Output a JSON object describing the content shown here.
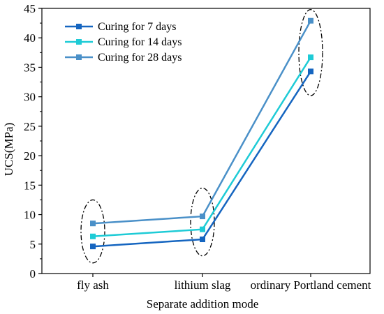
{
  "chart_data": {
    "type": "line",
    "title": "",
    "xlabel": "Separate addition mode",
    "ylabel": "UCS(MPa)",
    "categories": [
      "fly ash",
      "lithium slag",
      "ordinary Portland cement"
    ],
    "ylim": [
      0,
      45
    ],
    "yticks": [
      0,
      5,
      10,
      15,
      20,
      25,
      30,
      35,
      40,
      45
    ],
    "grid": false,
    "legend_position": "top-left",
    "series": [
      {
        "name": "Curing for 7 days",
        "color": "#1565c0",
        "values": [
          4.6,
          5.8,
          34.3
        ]
      },
      {
        "name": "Curing for 14 days",
        "color": "#1ecbd6",
        "values": [
          6.3,
          7.5,
          36.7
        ]
      },
      {
        "name": "Curing for 28 days",
        "color": "#4a90c8",
        "values": [
          8.5,
          9.7,
          42.9
        ]
      }
    ],
    "annotations": [
      {
        "shape": "dashed-ellipse",
        "category": "fly ash",
        "y_range": [
          1.8,
          12.5
        ]
      },
      {
        "shape": "dashed-ellipse",
        "category": "lithium slag",
        "y_range": [
          3.0,
          14.5
        ]
      },
      {
        "shape": "dashed-ellipse",
        "category": "ordinary Portland cement",
        "y_range": [
          30.2,
          44.8
        ]
      }
    ]
  }
}
